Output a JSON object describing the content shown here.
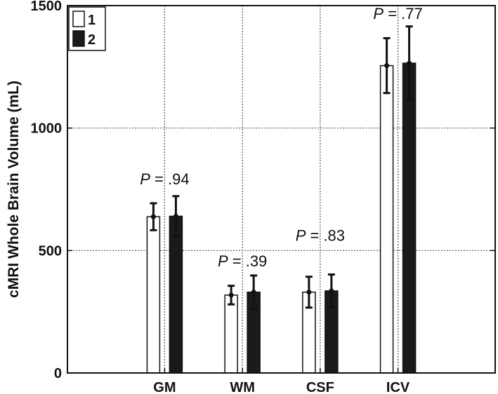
{
  "chart_data": {
    "type": "bar",
    "title": "",
    "xlabel": "",
    "ylabel": "cMRI Whole Brain Volume (mL)",
    "ylim": [
      0,
      1500
    ],
    "yticks": [
      0,
      500,
      1000,
      1500
    ],
    "grid": true,
    "legend_position": "top-left",
    "categories": [
      "GM",
      "WM",
      "CSF",
      "ICV"
    ],
    "series": [
      {
        "name": "1",
        "color": "#ffffff",
        "values": [
          638,
          318,
          330,
          1255
        ],
        "errors": [
          55,
          38,
          63,
          112
        ]
      },
      {
        "name": "2",
        "color": "#1a1a1a",
        "values": [
          640,
          330,
          335,
          1265
        ],
        "errors": [
          82,
          68,
          67,
          150
        ]
      }
    ],
    "annotations": [
      {
        "category": "GM",
        "italic": "P",
        "rest": " = .94",
        "y": 770
      },
      {
        "category": "WM",
        "italic": "P",
        "rest": " = .39",
        "y": 435
      },
      {
        "category": "CSF",
        "italic": "P",
        "rest": " = .83",
        "y": 540
      },
      {
        "category": "ICV",
        "italic": "P",
        "rest": " = .77",
        "y": 1445
      }
    ]
  }
}
